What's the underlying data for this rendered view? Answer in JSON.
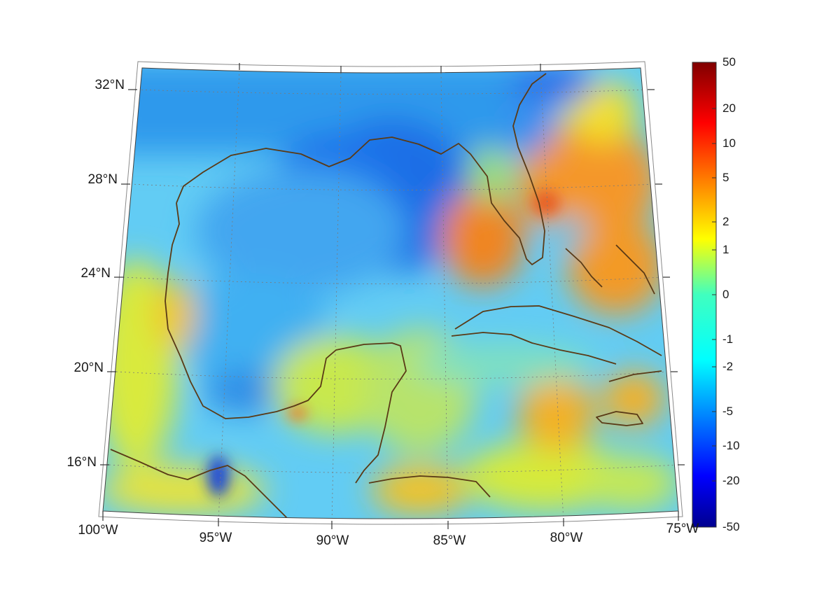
{
  "map": {
    "projection": "conic",
    "lat_ticks": [
      {
        "lat": 32,
        "label": "32°N"
      },
      {
        "lat": 28,
        "label": "28°N"
      },
      {
        "lat": 24,
        "label": "24°N"
      },
      {
        "lat": 20,
        "label": "20°N"
      },
      {
        "lat": 16,
        "label": "16°N"
      }
    ],
    "lon_ticks": [
      {
        "lon": -100,
        "label": "100°W"
      },
      {
        "lon": -95,
        "label": "95°W"
      },
      {
        "lon": -90,
        "label": "90°W"
      },
      {
        "lon": -85,
        "label": "85°W"
      },
      {
        "lon": -80,
        "label": "80°W"
      },
      {
        "lon": -75,
        "label": "75°W"
      }
    ],
    "coastline_color": "#5a3a16",
    "gridlines": "dotted"
  },
  "colorbar": {
    "colormap": "jet",
    "ticks": [
      "50",
      "20",
      "10",
      "5",
      "2",
      "1",
      "0",
      "-1",
      "-2",
      "-5",
      "-10",
      "-20",
      "-50"
    ]
  }
}
